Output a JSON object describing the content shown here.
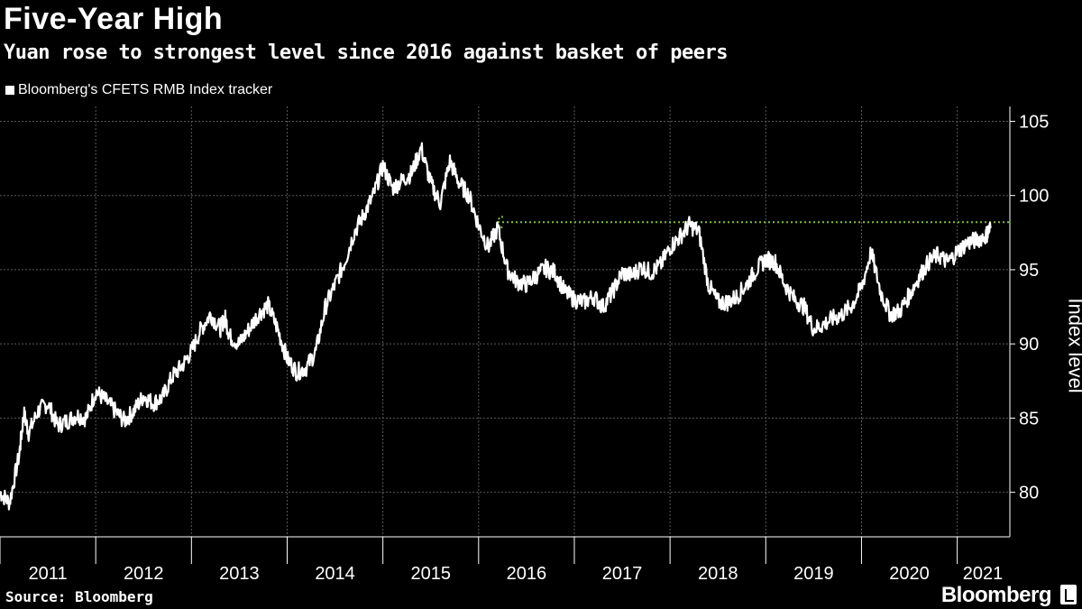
{
  "chart_data": {
    "type": "line",
    "title": "Five-Year High",
    "subtitle": "Yuan rose to strongest level since 2016 against basket of peers",
    "legend": [
      "Bloomberg's CFETS RMB Index tracker"
    ],
    "ylabel": "Index level",
    "xlabel": "",
    "ylim": [
      77,
      106
    ],
    "yticks": [
      80,
      85,
      90,
      95,
      100,
      105
    ],
    "xlim": [
      2011.0,
      2021.55
    ],
    "xtick_labels": [
      "2011",
      "2012",
      "2013",
      "2014",
      "2015",
      "2016",
      "2017",
      "2018",
      "2019",
      "2020",
      "2021"
    ],
    "reference_line": {
      "value": 98.2,
      "from_year": 2016.2,
      "to_year": 2021.55,
      "color": "#7fc241"
    },
    "series": [
      {
        "name": "Bloomberg's CFETS RMB Index tracker",
        "color": "#ffffff",
        "x": [
          2011.0,
          2011.1,
          2011.2,
          2011.25,
          2011.3,
          2011.4,
          2011.5,
          2011.6,
          2011.7,
          2011.8,
          2011.9,
          2012.0,
          2012.1,
          2012.2,
          2012.3,
          2012.4,
          2012.5,
          2012.6,
          2012.7,
          2012.8,
          2012.9,
          2013.0,
          2013.1,
          2013.2,
          2013.3,
          2013.35,
          2013.4,
          2013.5,
          2013.6,
          2013.7,
          2013.8,
          2013.9,
          2014.0,
          2014.1,
          2014.2,
          2014.3,
          2014.4,
          2014.5,
          2014.6,
          2014.7,
          2014.8,
          2014.9,
          2015.0,
          2015.1,
          2015.2,
          2015.3,
          2015.4,
          2015.5,
          2015.6,
          2015.7,
          2015.8,
          2015.9,
          2016.0,
          2016.1,
          2016.2,
          2016.3,
          2016.4,
          2016.5,
          2016.6,
          2016.7,
          2016.8,
          2016.9,
          2017.0,
          2017.1,
          2017.2,
          2017.3,
          2017.4,
          2017.5,
          2017.6,
          2017.7,
          2017.8,
          2017.9,
          2018.0,
          2018.1,
          2018.2,
          2018.3,
          2018.4,
          2018.5,
          2018.6,
          2018.7,
          2018.8,
          2018.9,
          2019.0,
          2019.1,
          2019.2,
          2019.3,
          2019.4,
          2019.5,
          2019.6,
          2019.7,
          2019.8,
          2019.9,
          2020.0,
          2020.1,
          2020.2,
          2020.3,
          2020.4,
          2020.5,
          2020.6,
          2020.7,
          2020.8,
          2020.9,
          2021.0,
          2021.1,
          2021.2,
          2021.3,
          2021.35
        ],
        "values": [
          80.0,
          79.3,
          82.5,
          85.3,
          84.0,
          85.5,
          86.0,
          84.5,
          84.8,
          85.2,
          85.0,
          86.8,
          86.2,
          85.5,
          84.8,
          85.5,
          86.5,
          86.0,
          86.4,
          87.8,
          88.5,
          89.5,
          91.0,
          92.0,
          91.0,
          91.8,
          90.5,
          90.0,
          91.0,
          92.0,
          92.6,
          91.0,
          89.0,
          88.1,
          88.4,
          89.5,
          92.5,
          94.0,
          95.5,
          97.5,
          98.7,
          100.0,
          102.0,
          100.5,
          101.0,
          101.5,
          103.2,
          100.8,
          99.5,
          102.3,
          100.8,
          100.0,
          98.0,
          96.5,
          97.8,
          95.0,
          94.2,
          94.0,
          94.6,
          95.1,
          94.8,
          93.5,
          93.0,
          92.8,
          93.2,
          92.5,
          93.5,
          94.8,
          94.6,
          95.2,
          94.8,
          95.3,
          96.5,
          97.2,
          98.0,
          97.6,
          94.0,
          92.8,
          92.8,
          93.2,
          94.0,
          95.0,
          95.7,
          95.5,
          94.0,
          93.0,
          92.5,
          91.0,
          91.3,
          91.7,
          92.0,
          92.6,
          93.8,
          96.2,
          93.5,
          92.0,
          92.2,
          93.3,
          94.5,
          95.5,
          96.0,
          95.5,
          96.2,
          96.8,
          97.0,
          97.3,
          97.9
        ]
      }
    ]
  },
  "footer": {
    "source": "Source: Bloomberg",
    "brand": "Bloomberg"
  },
  "icons": {
    "brand_icon": "bloomberg-terminal-icon"
  }
}
